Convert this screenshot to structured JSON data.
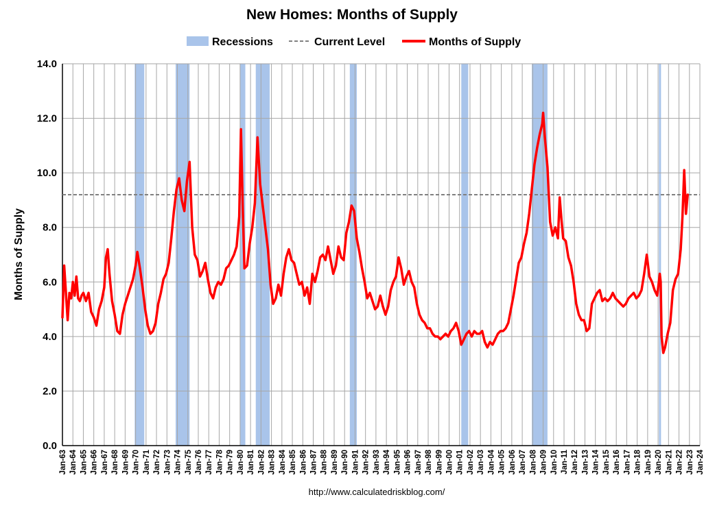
{
  "chart_data": {
    "type": "line",
    "title": "New Homes: Months of Supply",
    "ylabel": "Months of Supply",
    "xlabel": "",
    "source": "http://www.calculatedriskblog.com/",
    "ylim": [
      0,
      14
    ],
    "yticks": [
      "0.0",
      "2.0",
      "4.0",
      "6.0",
      "8.0",
      "10.0",
      "12.0",
      "14.0"
    ],
    "xlim": [
      "1963-01",
      "2024-01"
    ],
    "xtick_labels": [
      "Jan-63",
      "Jan-64",
      "Jan-65",
      "Jan-66",
      "Jan-67",
      "Jan-68",
      "Jan-69",
      "Jan-70",
      "Jan-71",
      "Jan-72",
      "Jan-73",
      "Jan-74",
      "Jan-75",
      "Jan-76",
      "Jan-77",
      "Jan-78",
      "Jan-79",
      "Jan-80",
      "Jan-81",
      "Jan-82",
      "Jan-83",
      "Jan-84",
      "Jan-85",
      "Jan-86",
      "Jan-87",
      "Jan-88",
      "Jan-89",
      "Jan-90",
      "Jan-91",
      "Jan-92",
      "Jan-93",
      "Jan-94",
      "Jan-95",
      "Jan-96",
      "Jan-97",
      "Jan-98",
      "Jan-99",
      "Jan-00",
      "Jan-01",
      "Jan-02",
      "Jan-03",
      "Jan-04",
      "Jan-05",
      "Jan-06",
      "Jan-07",
      "Jan-08",
      "Jan-09",
      "Jan-10",
      "Jan-11",
      "Jan-12",
      "Jan-13",
      "Jan-14",
      "Jan-15",
      "Jan-16",
      "Jan-17",
      "Jan-18",
      "Jan-19",
      "Jan-20",
      "Jan-21",
      "Jan-22",
      "Jan-23",
      "Jan-24"
    ],
    "grid": true,
    "legend_position": "top-center",
    "legend": [
      {
        "label": "Recessions",
        "kind": "bar",
        "color": "#a9c4ea"
      },
      {
        "label": "Current Level",
        "kind": "dashed",
        "color": "#808080"
      },
      {
        "label": "Months of Supply",
        "kind": "line",
        "color": "#ff0000"
      }
    ],
    "current_level": 9.2,
    "recessions": [
      [
        "1969-12",
        "1970-11"
      ],
      [
        "1973-11",
        "1975-03"
      ],
      [
        "1980-01",
        "1980-07"
      ],
      [
        "1981-07",
        "1982-11"
      ],
      [
        "1990-07",
        "1991-03"
      ],
      [
        "2001-03",
        "2001-11"
      ],
      [
        "2007-12",
        "2009-06"
      ],
      [
        "2020-02",
        "2020-04"
      ]
    ],
    "series": [
      {
        "name": "Months of Supply",
        "color": "#ff0000",
        "points": [
          [
            "1963-01",
            4.7
          ],
          [
            "1963-03",
            6.6
          ],
          [
            "1963-05",
            5.6
          ],
          [
            "1963-07",
            4.6
          ],
          [
            "1963-09",
            5.6
          ],
          [
            "1963-11",
            5.4
          ],
          [
            "1964-01",
            6.0
          ],
          [
            "1964-03",
            5.5
          ],
          [
            "1964-05",
            6.2
          ],
          [
            "1964-07",
            5.4
          ],
          [
            "1964-09",
            5.3
          ],
          [
            "1964-11",
            5.5
          ],
          [
            "1965-01",
            5.6
          ],
          [
            "1965-04",
            5.3
          ],
          [
            "1965-07",
            5.6
          ],
          [
            "1965-10",
            4.9
          ],
          [
            "1966-01",
            4.7
          ],
          [
            "1966-04",
            4.4
          ],
          [
            "1966-07",
            5.0
          ],
          [
            "1966-10",
            5.3
          ],
          [
            "1967-01",
            5.8
          ],
          [
            "1967-03",
            6.9
          ],
          [
            "1967-05",
            7.2
          ],
          [
            "1967-07",
            6.3
          ],
          [
            "1967-10",
            5.3
          ],
          [
            "1968-01",
            4.8
          ],
          [
            "1968-04",
            4.2
          ],
          [
            "1968-07",
            4.1
          ],
          [
            "1968-10",
            4.8
          ],
          [
            "1969-01",
            5.2
          ],
          [
            "1969-04",
            5.5
          ],
          [
            "1969-07",
            5.8
          ],
          [
            "1969-10",
            6.1
          ],
          [
            "1970-01",
            6.6
          ],
          [
            "1970-03",
            7.1
          ],
          [
            "1970-06",
            6.5
          ],
          [
            "1970-09",
            5.8
          ],
          [
            "1970-12",
            5.0
          ],
          [
            "1971-03",
            4.4
          ],
          [
            "1971-06",
            4.1
          ],
          [
            "1971-09",
            4.2
          ],
          [
            "1971-12",
            4.5
          ],
          [
            "1972-03",
            5.2
          ],
          [
            "1972-06",
            5.6
          ],
          [
            "1972-09",
            6.1
          ],
          [
            "1972-12",
            6.3
          ],
          [
            "1973-03",
            6.7
          ],
          [
            "1973-06",
            7.6
          ],
          [
            "1973-09",
            8.6
          ],
          [
            "1973-12",
            9.4
          ],
          [
            "1974-03",
            9.8
          ],
          [
            "1974-06",
            9.0
          ],
          [
            "1974-09",
            8.6
          ],
          [
            "1974-12",
            9.7
          ],
          [
            "1975-03",
            10.4
          ],
          [
            "1975-06",
            8.0
          ],
          [
            "1975-09",
            7.0
          ],
          [
            "1975-12",
            6.8
          ],
          [
            "1976-03",
            6.2
          ],
          [
            "1976-06",
            6.4
          ],
          [
            "1976-09",
            6.7
          ],
          [
            "1976-12",
            6.1
          ],
          [
            "1977-03",
            5.6
          ],
          [
            "1977-06",
            5.4
          ],
          [
            "1977-09",
            5.8
          ],
          [
            "1977-12",
            6.0
          ],
          [
            "1978-03",
            5.9
          ],
          [
            "1978-06",
            6.1
          ],
          [
            "1978-09",
            6.5
          ],
          [
            "1978-12",
            6.6
          ],
          [
            "1979-03",
            6.8
          ],
          [
            "1979-06",
            7.0
          ],
          [
            "1979-09",
            7.3
          ],
          [
            "1979-12",
            8.4
          ],
          [
            "1980-02",
            11.6
          ],
          [
            "1980-04",
            8.8
          ],
          [
            "1980-06",
            6.5
          ],
          [
            "1980-09",
            6.6
          ],
          [
            "1980-12",
            7.4
          ],
          [
            "1981-03",
            8.0
          ],
          [
            "1981-06",
            8.9
          ],
          [
            "1981-09",
            11.3
          ],
          [
            "1981-12",
            9.6
          ],
          [
            "1982-03",
            8.8
          ],
          [
            "1982-06",
            8.0
          ],
          [
            "1982-09",
            7.2
          ],
          [
            "1982-12",
            5.9
          ],
          [
            "1983-03",
            5.2
          ],
          [
            "1983-06",
            5.4
          ],
          [
            "1983-09",
            5.9
          ],
          [
            "1983-12",
            5.5
          ],
          [
            "1984-03",
            6.3
          ],
          [
            "1984-06",
            6.9
          ],
          [
            "1984-09",
            7.2
          ],
          [
            "1984-12",
            6.8
          ],
          [
            "1985-03",
            6.7
          ],
          [
            "1985-06",
            6.3
          ],
          [
            "1985-09",
            5.9
          ],
          [
            "1985-12",
            6.0
          ],
          [
            "1986-03",
            5.5
          ],
          [
            "1986-06",
            5.8
          ],
          [
            "1986-09",
            5.2
          ],
          [
            "1986-12",
            6.3
          ],
          [
            "1987-03",
            6.0
          ],
          [
            "1987-06",
            6.4
          ],
          [
            "1987-09",
            6.9
          ],
          [
            "1987-12",
            7.0
          ],
          [
            "1988-03",
            6.8
          ],
          [
            "1988-06",
            7.3
          ],
          [
            "1988-09",
            6.8
          ],
          [
            "1988-12",
            6.3
          ],
          [
            "1989-03",
            6.6
          ],
          [
            "1989-06",
            7.3
          ],
          [
            "1989-09",
            6.9
          ],
          [
            "1989-12",
            6.8
          ],
          [
            "1990-03",
            7.8
          ],
          [
            "1990-06",
            8.2
          ],
          [
            "1990-09",
            8.8
          ],
          [
            "1990-12",
            8.6
          ],
          [
            "1991-03",
            7.6
          ],
          [
            "1991-06",
            7.1
          ],
          [
            "1991-09",
            6.5
          ],
          [
            "1991-12",
            6.0
          ],
          [
            "1992-03",
            5.4
          ],
          [
            "1992-06",
            5.6
          ],
          [
            "1992-09",
            5.3
          ],
          [
            "1992-12",
            5.0
          ],
          [
            "1993-03",
            5.1
          ],
          [
            "1993-06",
            5.5
          ],
          [
            "1993-09",
            5.1
          ],
          [
            "1993-12",
            4.8
          ],
          [
            "1994-03",
            5.1
          ],
          [
            "1994-06",
            5.7
          ],
          [
            "1994-09",
            6.0
          ],
          [
            "1994-12",
            6.2
          ],
          [
            "1995-03",
            6.9
          ],
          [
            "1995-06",
            6.5
          ],
          [
            "1995-09",
            5.9
          ],
          [
            "1995-12",
            6.2
          ],
          [
            "1996-03",
            6.4
          ],
          [
            "1996-06",
            6.0
          ],
          [
            "1996-09",
            5.8
          ],
          [
            "1996-12",
            5.2
          ],
          [
            "1997-03",
            4.8
          ],
          [
            "1997-06",
            4.6
          ],
          [
            "1997-09",
            4.5
          ],
          [
            "1997-12",
            4.3
          ],
          [
            "1998-03",
            4.3
          ],
          [
            "1998-06",
            4.1
          ],
          [
            "1998-09",
            4.0
          ],
          [
            "1998-12",
            4.0
          ],
          [
            "1999-03",
            3.9
          ],
          [
            "1999-06",
            4.0
          ],
          [
            "1999-09",
            4.1
          ],
          [
            "1999-12",
            4.0
          ],
          [
            "2000-03",
            4.2
          ],
          [
            "2000-06",
            4.3
          ],
          [
            "2000-09",
            4.5
          ],
          [
            "2000-12",
            4.2
          ],
          [
            "2001-03",
            3.7
          ],
          [
            "2001-06",
            3.9
          ],
          [
            "2001-09",
            4.1
          ],
          [
            "2001-12",
            4.2
          ],
          [
            "2002-03",
            4.0
          ],
          [
            "2002-06",
            4.2
          ],
          [
            "2002-09",
            4.1
          ],
          [
            "2002-12",
            4.1
          ],
          [
            "2003-03",
            4.2
          ],
          [
            "2003-06",
            3.8
          ],
          [
            "2003-09",
            3.6
          ],
          [
            "2003-12",
            3.8
          ],
          [
            "2004-03",
            3.7
          ],
          [
            "2004-06",
            3.9
          ],
          [
            "2004-09",
            4.1
          ],
          [
            "2004-12",
            4.2
          ],
          [
            "2005-03",
            4.2
          ],
          [
            "2005-06",
            4.3
          ],
          [
            "2005-09",
            4.5
          ],
          [
            "2005-12",
            5.0
          ],
          [
            "2006-03",
            5.5
          ],
          [
            "2006-06",
            6.1
          ],
          [
            "2006-09",
            6.7
          ],
          [
            "2006-12",
            6.9
          ],
          [
            "2007-03",
            7.4
          ],
          [
            "2007-06",
            7.8
          ],
          [
            "2007-09",
            8.5
          ],
          [
            "2007-12",
            9.4
          ],
          [
            "2008-03",
            10.3
          ],
          [
            "2008-06",
            10.9
          ],
          [
            "2008-09",
            11.4
          ],
          [
            "2008-12",
            11.8
          ],
          [
            "2009-01",
            12.2
          ],
          [
            "2009-03",
            11.3
          ],
          [
            "2009-06",
            10.2
          ],
          [
            "2009-09",
            8.2
          ],
          [
            "2009-12",
            7.7
          ],
          [
            "2010-03",
            8.0
          ],
          [
            "2010-06",
            7.6
          ],
          [
            "2010-08",
            9.1
          ],
          [
            "2010-10",
            8.3
          ],
          [
            "2010-12",
            7.6
          ],
          [
            "2011-03",
            7.5
          ],
          [
            "2011-06",
            6.9
          ],
          [
            "2011-09",
            6.6
          ],
          [
            "2011-12",
            6.0
          ],
          [
            "2012-03",
            5.2
          ],
          [
            "2012-06",
            4.8
          ],
          [
            "2012-09",
            4.6
          ],
          [
            "2012-12",
            4.6
          ],
          [
            "2013-03",
            4.2
          ],
          [
            "2013-06",
            4.3
          ],
          [
            "2013-09",
            5.2
          ],
          [
            "2013-12",
            5.4
          ],
          [
            "2014-03",
            5.6
          ],
          [
            "2014-06",
            5.7
          ],
          [
            "2014-09",
            5.3
          ],
          [
            "2014-12",
            5.4
          ],
          [
            "2015-03",
            5.3
          ],
          [
            "2015-06",
            5.4
          ],
          [
            "2015-09",
            5.6
          ],
          [
            "2015-12",
            5.4
          ],
          [
            "2016-03",
            5.3
          ],
          [
            "2016-06",
            5.2
          ],
          [
            "2016-09",
            5.1
          ],
          [
            "2016-12",
            5.2
          ],
          [
            "2017-03",
            5.4
          ],
          [
            "2017-06",
            5.5
          ],
          [
            "2017-09",
            5.6
          ],
          [
            "2017-12",
            5.4
          ],
          [
            "2018-03",
            5.5
          ],
          [
            "2018-06",
            5.7
          ],
          [
            "2018-09",
            6.3
          ],
          [
            "2018-12",
            7.0
          ],
          [
            "2019-03",
            6.2
          ],
          [
            "2019-06",
            6.0
          ],
          [
            "2019-09",
            5.7
          ],
          [
            "2019-12",
            5.5
          ],
          [
            "2020-03",
            6.3
          ],
          [
            "2020-04",
            6.0
          ],
          [
            "2020-05",
            4.0
          ],
          [
            "2020-07",
            3.4
          ],
          [
            "2020-09",
            3.6
          ],
          [
            "2020-12",
            4.1
          ],
          [
            "2021-03",
            4.5
          ],
          [
            "2021-06",
            5.7
          ],
          [
            "2021-09",
            6.1
          ],
          [
            "2021-12",
            6.3
          ],
          [
            "2022-03",
            7.2
          ],
          [
            "2022-05",
            8.4
          ],
          [
            "2022-07",
            10.1
          ],
          [
            "2022-09",
            8.5
          ],
          [
            "2022-11",
            9.2
          ]
        ]
      }
    ]
  }
}
